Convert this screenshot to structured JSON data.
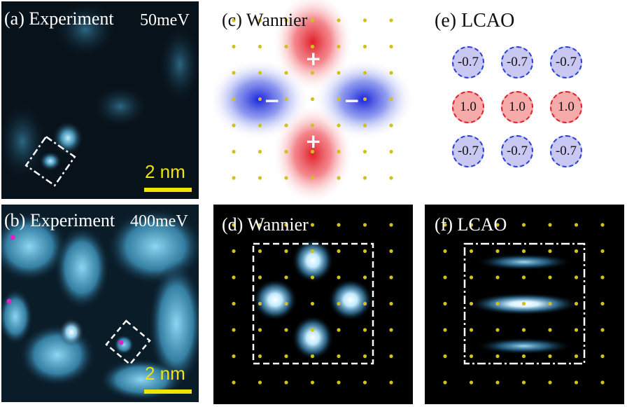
{
  "panels": {
    "a": {
      "label": "(a) Experiment",
      "energy": "50meV",
      "scale": "2 nm"
    },
    "b": {
      "label": "(b) Experiment",
      "energy": "400meV",
      "scale": "2 nm"
    },
    "c": {
      "label": "(c) Wannier",
      "signs": [
        "+",
        "−",
        "−",
        "+"
      ]
    },
    "d": {
      "label": "(d) Wannier"
    },
    "e": {
      "label": "(e) LCAO",
      "coefficients": [
        [
          "-0.7",
          "-0.7",
          "-0.7"
        ],
        [
          "1.0",
          "1.0",
          "1.0"
        ],
        [
          "-0.7",
          "-0.7",
          "-0.7"
        ]
      ]
    },
    "f": {
      "label": "(f) LCAO"
    }
  },
  "colors": {
    "positive": "#e0202a",
    "negative": "#2a3fd8",
    "lattice_dot": "#cfc21a",
    "scale_bar": "#f0e400",
    "stm_glow": "#8fd8f8"
  }
}
